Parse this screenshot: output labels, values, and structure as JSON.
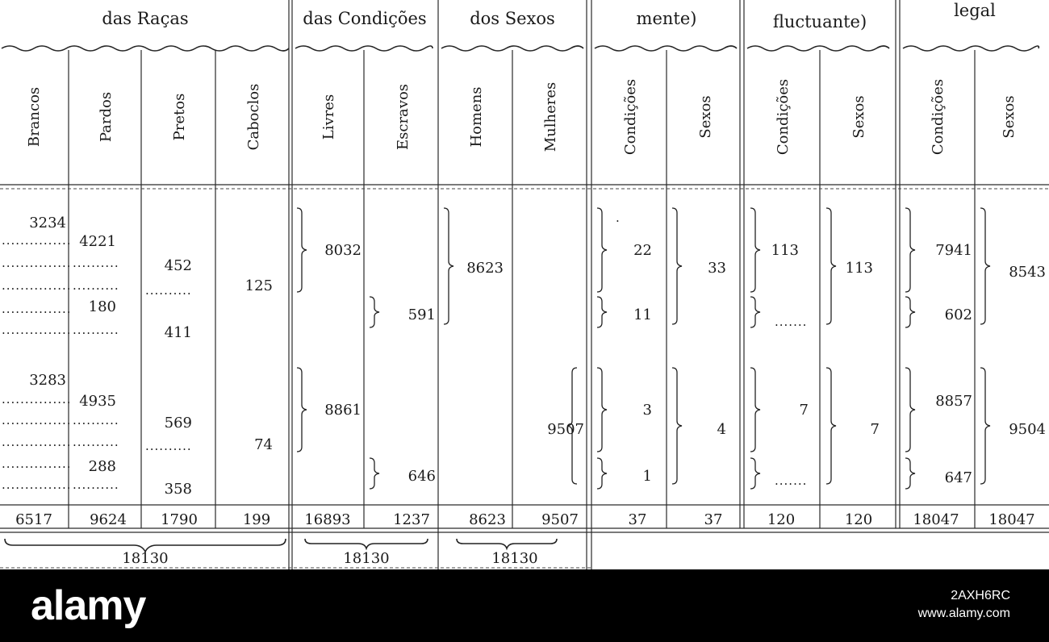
{
  "table": {
    "group_headers": [
      "das Raças",
      "das Condições",
      "dos Sexos",
      "mente)",
      "fluctuante)",
      "legal"
    ],
    "column_headers": [
      "Brancos",
      "Pardos",
      "Pretos",
      "Caboclos",
      "Livres",
      "Escravos",
      "Homens",
      "Mulheres",
      "Condições",
      "Sexos",
      "Condições",
      "Sexos",
      "Condições",
      "Sexos"
    ],
    "block1": {
      "brancos": "3234",
      "pardos": [
        "4221",
        "180"
      ],
      "pretos": [
        "452",
        "411"
      ],
      "caboclos": "125",
      "livres": "8032",
      "escravos": "591",
      "homens": "8623",
      "cond_present": [
        "22",
        "11"
      ],
      "sexos_present": "33",
      "cond_fluct": "113",
      "sexos_fluct": "113",
      "cond_legal": [
        "7941",
        "602"
      ],
      "sexos_legal": "8543"
    },
    "block2": {
      "brancos": "3283",
      "pardos": [
        "4935",
        "288"
      ],
      "pretos": [
        "569",
        "358"
      ],
      "caboclos": "74",
      "livres": "8861",
      "escravos": "646",
      "mulheres": "9507",
      "cond_present": [
        "3",
        "1"
      ],
      "sexos_present": "4",
      "cond_fluct": "7",
      "sexos_fluct": "7",
      "cond_legal": [
        "8857",
        "647"
      ],
      "sexos_legal": "9504"
    },
    "totals": [
      "6517",
      "9624",
      "1790",
      "199",
      "16893",
      "1237",
      "8623",
      "9507",
      "37",
      "37",
      "120",
      "120",
      "18047",
      "18047"
    ],
    "grand_totals": [
      "18130",
      "18130",
      "18130"
    ]
  },
  "watermark": {
    "logo": "alamy",
    "image_id": "2AXH6RC",
    "url": "www.alamy.com"
  }
}
